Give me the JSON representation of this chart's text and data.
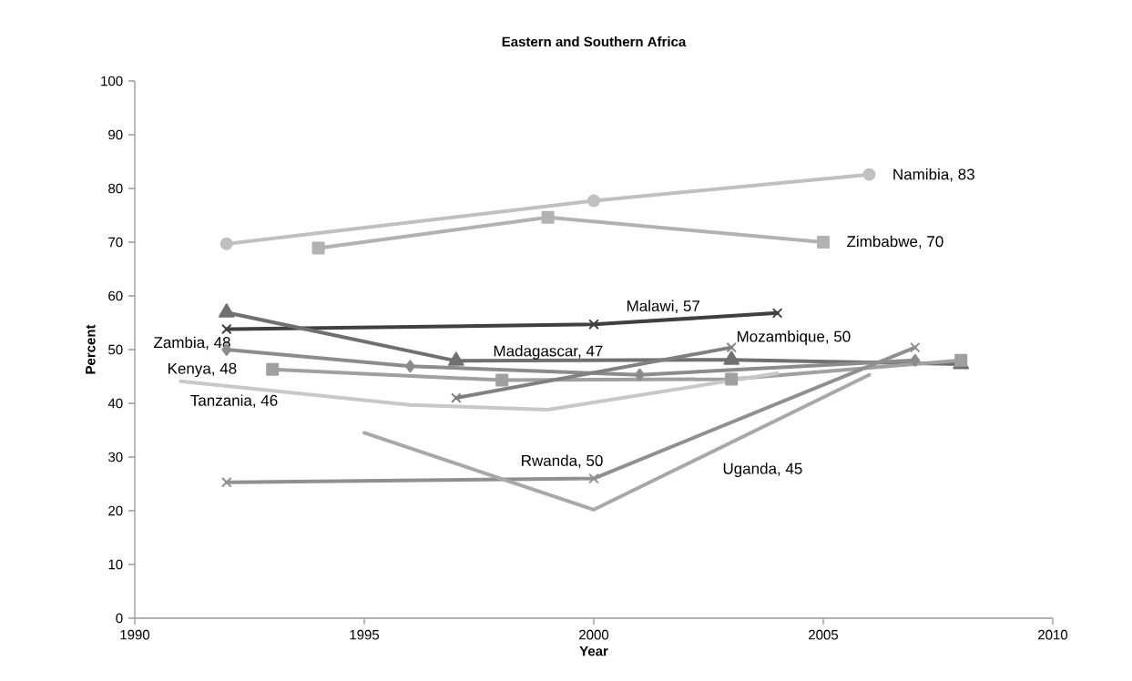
{
  "chart_data": {
    "type": "line",
    "title": "Eastern and Southern Africa",
    "xlabel": "Year",
    "ylabel": "Percent",
    "xlim": [
      1990,
      2010
    ],
    "xticks": [
      1990,
      1995,
      2000,
      2005,
      2010
    ],
    "ylim": [
      0,
      100
    ],
    "yticks": [
      0,
      10,
      20,
      30,
      40,
      50,
      60,
      70,
      80,
      90,
      100
    ],
    "grid": false,
    "series": [
      {
        "color": "#c0c0c0",
        "marker": "circle",
        "x": [
          1992,
          2000,
          2006
        ],
        "values": [
          69.7,
          77.7,
          82.6
        ]
      },
      {
        "color": "#b2b2b2",
        "marker": "square",
        "x": [
          1994,
          1999,
          2005
        ],
        "values": [
          68.9,
          74.6,
          70.0
        ]
      },
      {
        "color": "#404040",
        "marker": "cross",
        "x": [
          1992,
          2000,
          2004
        ],
        "values": [
          53.8,
          54.7,
          56.8
        ]
      },
      {
        "color": "#707070",
        "marker": "triangle",
        "x": [
          1992,
          1997,
          2003,
          2008
        ],
        "values": [
          56.9,
          47.9,
          48.1,
          47.3
        ]
      },
      {
        "color": "#8c8c8c",
        "marker": "diamond",
        "x": [
          1992,
          1996,
          2001,
          2007
        ],
        "values": [
          50.0,
          46.9,
          45.3,
          48.0
        ]
      },
      {
        "color": "#a0a0a0",
        "marker": "square",
        "x": [
          1993,
          1998,
          2003,
          2008
        ],
        "values": [
          46.3,
          44.3,
          44.5,
          48.0
        ]
      },
      {
        "color": "#c8c8c8",
        "marker": "none",
        "x": [
          1991,
          1996,
          1999,
          2004
        ],
        "values": [
          44.1,
          39.7,
          38.8,
          45.6
        ]
      },
      {
        "color": "#808080",
        "marker": "cross",
        "x": [
          1997,
          2003
        ],
        "values": [
          41.0,
          50.4
        ]
      },
      {
        "color": "#909090",
        "marker": "cross",
        "x": [
          1992,
          2000,
          2007
        ],
        "values": [
          25.3,
          26.0,
          50.4
        ]
      },
      {
        "color": "#a8a8a8",
        "marker": "none",
        "x": [
          1995,
          2000,
          2006
        ],
        "values": [
          34.5,
          20.2,
          45.3
        ]
      }
    ],
    "annotations": [
      "Namibia, 83",
      "Zimbabwe, 70",
      "Malawi, 57",
      "Mozambique, 50",
      "Madagascar, 47",
      "Zambia, 48",
      "Kenya, 48",
      "Tanzania, 46",
      "Rwanda, 50",
      "Uganda, 45"
    ]
  }
}
